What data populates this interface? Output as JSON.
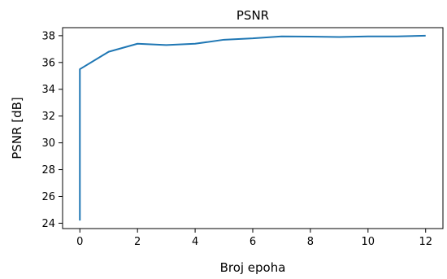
{
  "chart_data": {
    "type": "line",
    "title": "PSNR",
    "xlabel": "Broj epoha",
    "ylabel": "PSNR [dB]",
    "xlim": [
      -0.6,
      12.6
    ],
    "ylim": [
      23.6,
      38.6
    ],
    "xticks": [
      0,
      2,
      4,
      6,
      8,
      10,
      12
    ],
    "yticks": [
      24,
      26,
      28,
      30,
      32,
      34,
      36,
      38
    ],
    "grid": false,
    "legend": "none",
    "series": [
      {
        "color": "#1f77b4",
        "x": [
          0,
          0,
          1,
          2,
          3,
          4,
          5,
          6,
          7,
          8,
          9,
          10,
          11,
          12
        ],
        "y": [
          24.2,
          35.5,
          36.8,
          37.4,
          37.3,
          37.4,
          37.7,
          37.8,
          37.95,
          37.93,
          37.9,
          37.95,
          37.95,
          38.0
        ]
      }
    ]
  }
}
